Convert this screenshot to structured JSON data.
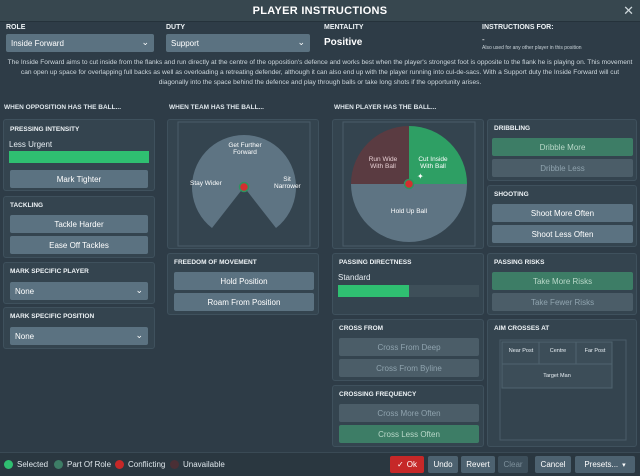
{
  "window": {
    "title": "PLAYER INSTRUCTIONS"
  },
  "role": {
    "label": "ROLE",
    "value": "Inside Forward"
  },
  "duty": {
    "label": "DUTY",
    "value": "Support"
  },
  "mentality": {
    "label": "MENTALITY",
    "value": "Positive"
  },
  "instructions_for": {
    "label": "INSTRUCTIONS FOR:",
    "value": "-",
    "sub": "Also used for any other player in this position"
  },
  "description": "The Inside Forward aims to cut inside from the flanks and run directly at the centre of the opposition's defence and works best when the player's strongest foot is opposite to the flank he is playing on. This movement can open up space for overlapping full backs as well as overloading a retreating defender, although it can also end up with the player running into cul-de-sacs. With a Support duty the Inside Forward will cut diagonally into the space behind the defence and play through balls or take long shots if the opportunity arises.",
  "sections": {
    "opposition": "WHEN OPPOSITION HAS THE BALL...",
    "team": "WHEN TEAM HAS THE BALL...",
    "player": "WHEN PLAYER HAS THE BALL..."
  },
  "pressing": {
    "title": "PRESSING INTENSITY",
    "level": "Less Urgent",
    "fill": 1.0,
    "button": "Mark Tighter"
  },
  "tackling": {
    "title": "TACKLING",
    "harder": "Tackle Harder",
    "ease": "Ease Off Tackles"
  },
  "mark_player": {
    "title": "MARK SPECIFIC PLAYER",
    "value": "None"
  },
  "mark_position": {
    "title": "MARK SPECIFIC POSITION",
    "value": "None"
  },
  "team_ball": {
    "labels": {
      "further": "Get Further Forward",
      "wider": "Stay Wider",
      "narrower": "Sit Narrower"
    }
  },
  "freedom": {
    "title": "FREEDOM OF MOVEMENT",
    "hold": "Hold Position",
    "roam": "Roam From Position"
  },
  "player_ball": {
    "labels": {
      "runwide": "Run Wide With Ball",
      "cutinside": "Cut Inside With Ball",
      "hold": "Hold Up Ball"
    },
    "selected": "Cut Inside With Ball"
  },
  "dribbling": {
    "title": "DRIBBLING",
    "more": "Dribble More",
    "less": "Dribble Less"
  },
  "shooting": {
    "title": "SHOOTING",
    "more": "Shoot More Often",
    "less": "Shoot Less Often"
  },
  "passing_directness": {
    "title": "PASSING DIRECTNESS",
    "level": "Standard",
    "fill": 0.5
  },
  "passing_risks": {
    "title": "PASSING RISKS",
    "more": "Take More Risks",
    "fewer": "Take Fewer Risks"
  },
  "cross_from": {
    "title": "CROSS FROM",
    "deep": "Cross From Deep",
    "byline": "Cross From Byline"
  },
  "crossing_frequency": {
    "title": "CROSSING FREQUENCY",
    "more": "Cross More Often",
    "less": "Cross Less Often"
  },
  "aim_crosses": {
    "title": "AIM CROSSES AT",
    "near": "Near Post",
    "centre": "Centre",
    "far": "Far Post",
    "target": "Target Man"
  },
  "legend": {
    "selected": "Selected",
    "part": "Part Of Role",
    "conflicting": "Conflicting",
    "unavailable": "Unavailable"
  },
  "footer": {
    "ok": "Ok",
    "undo": "Undo",
    "revert": "Revert",
    "clear": "Clear",
    "cancel": "Cancel",
    "presets": "Presets..."
  },
  "colors": {
    "selected": "#2e9460",
    "part": "#3d7d66",
    "conflicting": "#c62828",
    "unavailable": "#4a2f35",
    "accent": "#5b7281"
  }
}
